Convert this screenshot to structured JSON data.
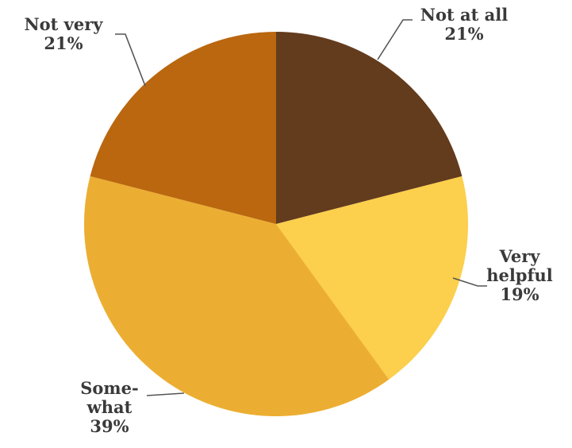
{
  "chart_data": {
    "type": "pie",
    "title": "",
    "start_angle_deg": -90,
    "direction": "clockwise",
    "slices": [
      {
        "name": "Not at all",
        "label_lines": [
          "Not at all",
          "21%"
        ],
        "value": 21,
        "color": "#633B1D"
      },
      {
        "name": "Very helpful",
        "label_lines": [
          "Very",
          "helpful",
          "19%"
        ],
        "value": 19,
        "color": "#FCCF4C"
      },
      {
        "name": "Somewhat",
        "label_lines": [
          "Some-",
          "what",
          "39%"
        ],
        "value": 39,
        "color": "#ECAE32"
      },
      {
        "name": "Not very",
        "label_lines": [
          "Not very",
          "21%"
        ],
        "value": 21,
        "color": "#BA670F"
      }
    ]
  }
}
